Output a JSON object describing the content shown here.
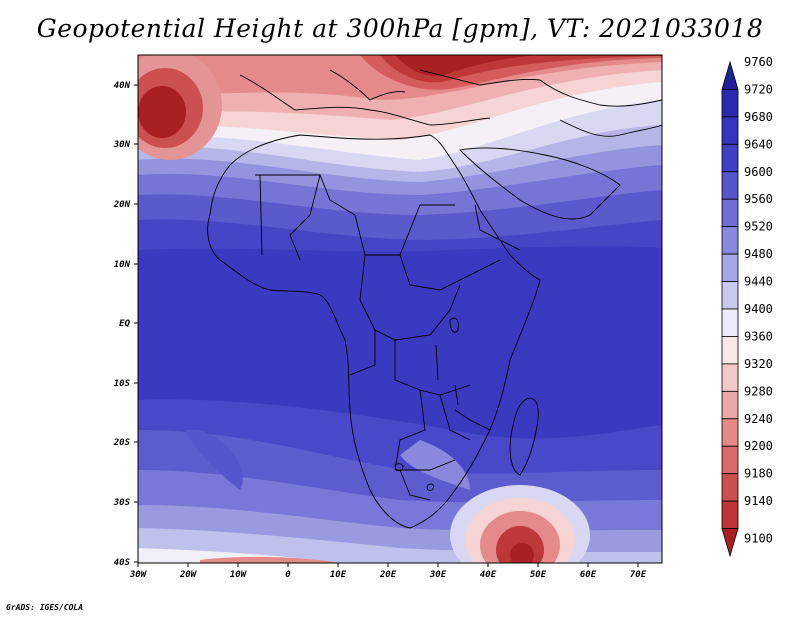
{
  "title": "Geopotential Height at 300hPa [gpm], VT: 2021033018",
  "credit": "GrADS: IGES/COLA",
  "lat_labels": [
    "40N",
    "30N",
    "20N",
    "10N",
    "EQ",
    "10S",
    "20S",
    "30S",
    "40S"
  ],
  "lon_labels": [
    "30W",
    "20W",
    "10W",
    "0",
    "10E",
    "20E",
    "30E",
    "40E",
    "50E",
    "60E",
    "70E"
  ],
  "colorbar": {
    "levels": [
      "9760",
      "9720",
      "9680",
      "9640",
      "9600",
      "9560",
      "9520",
      "9480",
      "9440",
      "9400",
      "9360",
      "9320",
      "9280",
      "9240",
      "9200",
      "9180",
      "9140",
      "9100"
    ],
    "colors": [
      "#20209a",
      "#2b2bb0",
      "#3535bd",
      "#4040c4",
      "#5555cc",
      "#6e6ed4",
      "#8888dc",
      "#a6a6e4",
      "#c8c8ee",
      "#ececf8",
      "#f8e8e8",
      "#f4c8c8",
      "#eca8a8",
      "#e48888",
      "#d86a6a",
      "#cc5050",
      "#bd3535",
      "#a82020"
    ]
  }
}
